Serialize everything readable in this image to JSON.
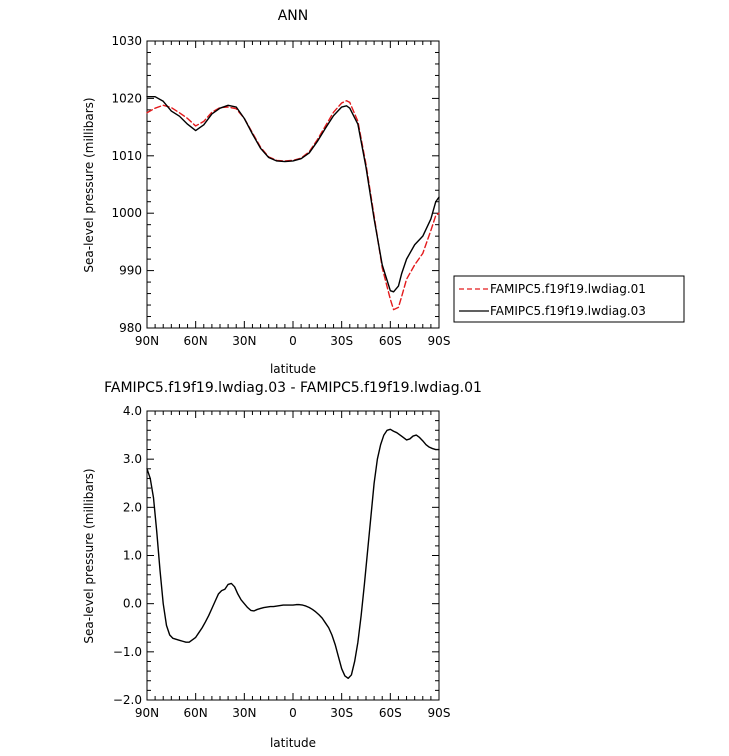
{
  "chart_data": [
    {
      "type": "line",
      "title": "ANN",
      "xlabel": "latitude",
      "ylabel": "Sea-level pressure (millibars)",
      "xlim": [
        90,
        -90
      ],
      "ylim": [
        980,
        1030
      ],
      "x_ticks": [
        90,
        60,
        30,
        0,
        -30,
        -60,
        -90
      ],
      "x_tick_labels": [
        "90N",
        "60N",
        "30N",
        "0",
        "30S",
        "60S",
        "90S"
      ],
      "y_ticks": [
        980,
        990,
        1000,
        1010,
        1020,
        1030
      ],
      "y_tick_labels": [
        "980",
        "990",
        "1000",
        "1010",
        "1020",
        "1030"
      ],
      "legend": "right",
      "series": [
        {
          "name": "FAMIPC5.f19f19.lwdiag.01",
          "color": "#e31a1c",
          "dash": "dashed",
          "x": [
            90,
            85,
            80,
            75,
            70,
            65,
            60,
            55,
            50,
            45,
            40,
            35,
            30,
            25,
            20,
            15,
            10,
            5,
            0,
            -5,
            -10,
            -15,
            -20,
            -25,
            -30,
            -33,
            -35,
            -40,
            -45,
            -50,
            -55,
            -60,
            -62,
            -65,
            -67,
            -70,
            -75,
            -80,
            -85,
            -88,
            -90
          ],
          "values": [
            1017.5,
            1018.3,
            1018.8,
            1018.4,
            1017.5,
            1016.5,
            1015.2,
            1016.0,
            1017.6,
            1018.4,
            1018.5,
            1018.2,
            1016.5,
            1014.0,
            1011.5,
            1009.8,
            1009.2,
            1009.1,
            1009.2,
            1009.6,
            1010.7,
            1012.8,
            1015.2,
            1017.6,
            1019.2,
            1019.6,
            1019.3,
            1016.0,
            1008.5,
            999.5,
            990.5,
            985.0,
            983.2,
            983.6,
            985.5,
            988.5,
            991.0,
            993.0,
            997.0,
            999.6,
            1000.0
          ]
        },
        {
          "name": "FAMIPC5.f19f19.lwdiag.03",
          "color": "#000000",
          "dash": "solid",
          "x": [
            90,
            85,
            80,
            75,
            70,
            65,
            60,
            55,
            50,
            45,
            40,
            35,
            30,
            25,
            20,
            15,
            10,
            5,
            0,
            -5,
            -10,
            -15,
            -20,
            -25,
            -30,
            -33,
            -35,
            -40,
            -45,
            -50,
            -55,
            -60,
            -62,
            -65,
            -67,
            -70,
            -75,
            -80,
            -85,
            -88,
            -90
          ],
          "values": [
            1020.3,
            1020.3,
            1019.5,
            1017.8,
            1016.9,
            1015.5,
            1014.4,
            1015.4,
            1017.3,
            1018.3,
            1018.8,
            1018.5,
            1016.5,
            1013.8,
            1011.3,
            1009.7,
            1009.1,
            1009.0,
            1009.1,
            1009.5,
            1010.5,
            1012.5,
            1014.8,
            1017.0,
            1018.5,
            1018.7,
            1018.3,
            1015.5,
            1008.0,
            999.0,
            991.0,
            986.5,
            986.3,
            987.3,
            989.5,
            992.0,
            994.5,
            996.0,
            999.0,
            1002.0,
            1002.8
          ]
        }
      ]
    },
    {
      "type": "line",
      "title": "FAMIPC5.f19f19.lwdiag.03 - FAMIPC5.f19f19.lwdiag.01",
      "xlabel": "latitude",
      "ylabel": "Sea-level pressure (millibars)",
      "xlim": [
        90,
        -90
      ],
      "ylim": [
        -2.0,
        4.0
      ],
      "x_ticks": [
        90,
        60,
        30,
        0,
        -30,
        -60,
        -90
      ],
      "x_tick_labels": [
        "90N",
        "60N",
        "30N",
        "0",
        "30S",
        "60S",
        "90S"
      ],
      "y_ticks": [
        -2.0,
        -1.0,
        0.0,
        1.0,
        2.0,
        3.0,
        4.0
      ],
      "y_tick_labels": [
        "−2.0",
        "−1.0",
        "0.0",
        "1.0",
        "2.0",
        "3.0",
        "4.0"
      ],
      "series": [
        {
          "color": "#000000",
          "dash": "solid",
          "x": [
            90,
            88,
            86,
            84,
            82,
            80,
            78,
            76,
            74,
            72,
            70,
            68,
            66,
            64,
            62,
            60,
            58,
            56,
            54,
            52,
            50,
            48,
            46,
            44,
            42,
            40,
            38,
            36,
            34,
            32,
            30,
            28,
            26,
            24,
            22,
            20,
            18,
            16,
            14,
            12,
            10,
            8,
            6,
            4,
            2,
            0,
            -2,
            -4,
            -6,
            -8,
            -10,
            -12,
            -14,
            -16,
            -18,
            -20,
            -22,
            -24,
            -26,
            -28,
            -30,
            -32,
            -34,
            -36,
            -38,
            -40,
            -42,
            -44,
            -46,
            -48,
            -50,
            -52,
            -54,
            -56,
            -58,
            -60,
            -62,
            -64,
            -66,
            -68,
            -70,
            -72,
            -74,
            -76,
            -78,
            -80,
            -82,
            -84,
            -86,
            -88,
            -90
          ],
          "values": [
            2.8,
            2.6,
            2.2,
            1.5,
            0.7,
            0.0,
            -0.45,
            -0.65,
            -0.72,
            -0.74,
            -0.76,
            -0.78,
            -0.8,
            -0.8,
            -0.75,
            -0.7,
            -0.6,
            -0.5,
            -0.38,
            -0.25,
            -0.1,
            0.05,
            0.2,
            0.27,
            0.3,
            0.4,
            0.42,
            0.35,
            0.2,
            0.08,
            0.0,
            -0.08,
            -0.14,
            -0.15,
            -0.12,
            -0.1,
            -0.08,
            -0.07,
            -0.06,
            -0.06,
            -0.05,
            -0.04,
            -0.03,
            -0.03,
            -0.03,
            -0.03,
            -0.02,
            -0.02,
            -0.03,
            -0.05,
            -0.08,
            -0.12,
            -0.17,
            -0.23,
            -0.3,
            -0.4,
            -0.5,
            -0.65,
            -0.85,
            -1.1,
            -1.35,
            -1.5,
            -1.55,
            -1.48,
            -1.2,
            -0.8,
            -0.25,
            0.4,
            1.1,
            1.8,
            2.5,
            3.0,
            3.3,
            3.5,
            3.6,
            3.62,
            3.58,
            3.55,
            3.5,
            3.45,
            3.4,
            3.42,
            3.48,
            3.5,
            3.45,
            3.38,
            3.3,
            3.25,
            3.22,
            3.2,
            3.2
          ]
        }
      ]
    }
  ]
}
